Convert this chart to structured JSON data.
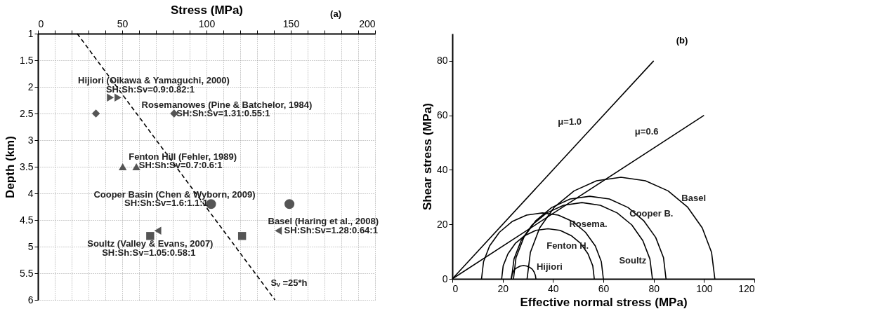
{
  "chart_data": [
    {
      "type": "scatter",
      "title": "(a)",
      "xlabel": "Stress (MPa)",
      "ylabel": "Depth (km)",
      "xlim": [
        0,
        200
      ],
      "xticks": [
        0,
        {
          "value": 10,
          "label": null
        },
        {
          "value": 20,
          "label": null
        },
        {
          "value": 30,
          "label": null
        },
        {
          "value": 40,
          "label": null
        },
        50,
        {
          "value": 60,
          "label": null
        },
        {
          "value": 70,
          "label": null
        },
        {
          "value": 80,
          "label": null
        },
        {
          "value": 90,
          "label": null
        },
        100,
        {
          "value": 110,
          "label": null
        },
        {
          "value": 120,
          "label": null
        },
        {
          "value": 130,
          "label": null
        },
        {
          "value": 140,
          "label": null
        },
        150,
        {
          "value": 160,
          "label": null
        },
        {
          "value": 170,
          "label": null
        },
        {
          "value": 180,
          "label": null
        },
        {
          "value": 190,
          "label": null
        },
        200
      ],
      "ylim": [
        6,
        1
      ],
      "yticks": [
        1,
        1.5,
        2,
        2.5,
        3,
        3.5,
        4,
        4.5,
        5,
        5.5,
        6
      ],
      "grid": true,
      "series": [
        {
          "type": "scatter",
          "marker": "triangle-right",
          "color": "#555555",
          "x": [
            43,
            47.5
          ],
          "values": [
            2.2,
            2.2
          ]
        },
        {
          "type": "scatter",
          "marker": "diamond",
          "color": "#555555",
          "x": [
            34.4,
            80.8
          ],
          "values": [
            2.5,
            2.5
          ]
        },
        {
          "type": "scatter",
          "marker": "triangle",
          "color": "#555555",
          "x": [
            50.3,
            58.4
          ],
          "values": [
            3.5,
            3.5
          ]
        },
        {
          "type": "scatter",
          "marker": "circle",
          "color": "#555555",
          "x": [
            102.7,
            149.2
          ],
          "values": [
            4.2,
            4.2
          ]
        },
        {
          "type": "scatter",
          "marker": "triangle-left",
          "color": "#555555",
          "x": [
            71.1,
            142.6
          ],
          "values": [
            4.7,
            4.7
          ]
        },
        {
          "type": "scatter",
          "marker": "square",
          "color": "#555555",
          "x": [
            66.6,
            121.1
          ],
          "values": [
            4.8,
            4.8
          ]
        },
        {
          "type": "line",
          "line_style": "dashed",
          "color": "#000000",
          "x": [
            23.3,
            140.6
          ],
          "values": [
            1,
            6
          ]
        }
      ],
      "annotations": [
        {
          "text": "Hijiori (Oikawa & Yamaguchi, 2000)",
          "x": 47.5,
          "y": 2.2
        },
        {
          "text": "SH:Sh:Sv=0.9:0.82:1",
          "x": 47.5,
          "y": 2.2
        },
        {
          "text": "Rosemanowes (Pine & Batchelor, 1984)",
          "x": 80.8,
          "y": 2.5
        },
        {
          "text": "SH:Sh:Sv=1.31:0.55:1",
          "x": 80.8,
          "y": 2.5
        },
        {
          "text": "Fenton Hill (Fehler, 1989)",
          "x": 58.4,
          "y": 3.5
        },
        {
          "text": "SH:Sh:Sv=0.7:0.6:1",
          "x": 58.4,
          "y": 3.5
        },
        {
          "text": "Cooper Basin (Chen & Wyborn, 2009)",
          "x": 102.7,
          "y": 4.2
        },
        {
          "text": "SH:Sh:Sv=1.6:1.1:1",
          "x": 102.7,
          "y": 4.2
        },
        {
          "text": "Basel (Haring et al., 2008)",
          "x": 142.6,
          "y": 4.7
        },
        {
          "text": "SH:Sh:Sv=1.28:0.64:1",
          "x": 142.6,
          "y": 4.7
        },
        {
          "text": "Soultz (Valley & Evans, 2007)",
          "x": 66.6,
          "y": 4.8
        },
        {
          "text": "SH:Sh:Sv=1.05:0.58:1",
          "x": 66.6,
          "y": 4.8
        },
        {
          "text": "Sᵥ =25*h",
          "x": 140.6,
          "y": 6
        }
      ]
    },
    {
      "type": "line",
      "title": "(b)",
      "xlabel": "Effective normal stress (MPa)",
      "ylabel": "Shear stress (MPa)",
      "xlim": [
        0,
        120
      ],
      "xticks": [
        0,
        20,
        40,
        60,
        80,
        100,
        120
      ],
      "ylim": [
        0,
        90
      ],
      "yticks": [
        0,
        20,
        40,
        60,
        80
      ],
      "grid": false,
      "line_style": "solid",
      "series": [
        {
          "color": "#000000",
          "x": [
            0,
            50,
            80
          ],
          "values": [
            0,
            50,
            80
          ]
        },
        {
          "color": "#000000",
          "x": [
            0,
            80,
            100
          ],
          "values": [
            0,
            48,
            60
          ]
        },
        {
          "color": "#000000",
          "x": [
            23.4,
            23.6,
            24.1,
            24.8,
            25.9,
            27.0,
            28.3,
            29.6,
            30.8,
            31.8,
            32.5,
            33.0,
            33.2
          ],
          "values": [
            0,
            1.3,
            2.5,
            3.5,
            4.2,
            4.7,
            4.9,
            4.7,
            4.2,
            3.5,
            2.5,
            1.3,
            0
          ]
        },
        {
          "color": "#000000",
          "x": [
            19.6,
            20.2,
            22.1,
            25.0,
            28.8,
            33.2,
            38,
            42.8,
            47.2,
            51.0,
            53.9,
            55.8,
            56.4
          ],
          "values": [
            0,
            4.8,
            9.2,
            13.0,
            15.9,
            17.8,
            18.4,
            17.8,
            15.9,
            13.0,
            9.2,
            4.8,
            0
          ]
        },
        {
          "color": "#000000",
          "x": [
            11.6,
            12.4,
            14.8,
            18.7,
            23.7,
            29.5,
            35.8,
            42.1,
            47.9,
            52.9,
            56.8,
            59.2,
            60.0
          ],
          "values": [
            0,
            6.3,
            12.1,
            17.1,
            21.0,
            23.4,
            24.2,
            23.4,
            21.0,
            17.1,
            12.1,
            6.3,
            0
          ]
        },
        {
          "color": "#000000",
          "x": [
            23.5,
            24.5,
            27.3,
            31.7,
            37.5,
            44.2,
            51.5,
            58.8,
            65.5,
            71.3,
            75.7,
            78.5,
            79.5
          ],
          "values": [
            0,
            7.3,
            14,
            19.8,
            24.2,
            27.0,
            28,
            27.0,
            24.2,
            19.8,
            14,
            7.3,
            0
          ]
        },
        {
          "color": "#000000",
          "x": [
            24.3,
            25.3,
            28.4,
            33.2,
            39.5,
            46.8,
            54.6,
            62.4,
            69.8,
            76.0,
            80.8,
            83.9,
            84.9
          ],
          "values": [
            0,
            7.8,
            15.2,
            21.4,
            26.2,
            29.3,
            30.3,
            29.3,
            26.2,
            21.4,
            15.2,
            7.8,
            0
          ]
        },
        {
          "color": "#000000",
          "x": [
            29.7,
            31.0,
            34.7,
            40.6,
            48.4,
            57.3,
            67,
            76.7,
            85.7,
            93.4,
            99.3,
            103.0,
            104.3
          ],
          "values": [
            0,
            9.7,
            18.7,
            26.4,
            32.3,
            36.0,
            37.3,
            36.0,
            32.3,
            26.4,
            18.7,
            9.7,
            0
          ]
        }
      ],
      "annotations": [
        {
          "text": "μ=1.0",
          "x": 50,
          "y": 50
        },
        {
          "text": "μ=0.6",
          "x": 80,
          "y": 48
        },
        {
          "text": "Basel",
          "x": 93.4,
          "y": 26.4
        },
        {
          "text": "Cooper B.",
          "x": 76.0,
          "y": 21.4
        },
        {
          "text": "Rosema.",
          "x": 51.5,
          "y": 28
        },
        {
          "text": "Fenton H.",
          "x": 38,
          "y": 18.4
        },
        {
          "text": "Soultz",
          "x": 79.5,
          "y": 0
        },
        {
          "text": "Hijiori",
          "x": 28.3,
          "y": 4.9
        }
      ]
    }
  ]
}
